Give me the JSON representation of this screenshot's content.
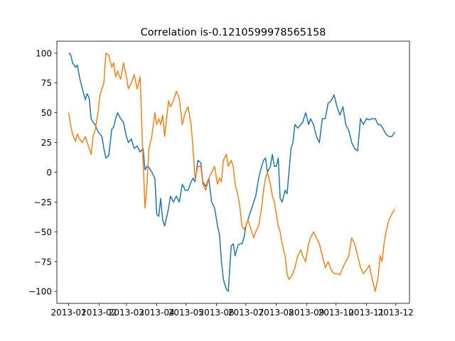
{
  "chart_data": {
    "type": "line",
    "title": "Correlation is-0.1210599978565158",
    "xlabel": "",
    "ylabel": "",
    "xlim": [
      "2012-12-20",
      "2013-12-15"
    ],
    "ylim": [
      -110,
      110
    ],
    "x_ticks": [
      {
        "date": "2013-01-01",
        "label": "2013-01"
      },
      {
        "date": "2013-02-01",
        "label": "2013-02"
      },
      {
        "date": "2013-03-01",
        "label": "2013-03"
      },
      {
        "date": "2013-04-01",
        "label": "2013-04"
      },
      {
        "date": "2013-05-01",
        "label": "2013-05"
      },
      {
        "date": "2013-06-01",
        "label": "2013-06"
      },
      {
        "date": "2013-07-01",
        "label": "2013-07"
      },
      {
        "date": "2013-08-01",
        "label": "2013-08"
      },
      {
        "date": "2013-09-01",
        "label": "2013-09"
      },
      {
        "date": "2013-10-01",
        "label": "2013-10"
      },
      {
        "date": "2013-11-01",
        "label": "2013-11"
      },
      {
        "date": "2013-12-01",
        "label": "2013-12"
      }
    ],
    "y_ticks": [
      {
        "value": 100,
        "label": "100"
      },
      {
        "value": 75,
        "label": "75"
      },
      {
        "value": 50,
        "label": "50"
      },
      {
        "value": 25,
        "label": "25"
      },
      {
        "value": 0,
        "label": "0"
      },
      {
        "value": -25,
        "label": "−25"
      },
      {
        "value": -50,
        "label": "−50"
      },
      {
        "value": -75,
        "label": "−75"
      },
      {
        "value": -100,
        "label": "−100"
      }
    ],
    "grid": false,
    "series": [
      {
        "color": "#1f77b4",
        "x": [
          "2013-01-01",
          "2013-01-03",
          "2013-01-05",
          "2013-01-08",
          "2013-01-10",
          "2013-01-12",
          "2013-01-15",
          "2013-01-18",
          "2013-01-20",
          "2013-01-22",
          "2013-01-24",
          "2013-01-26",
          "2013-01-28",
          "2013-01-31",
          "2013-02-02",
          "2013-02-04",
          "2013-02-06",
          "2013-02-08",
          "2013-02-11",
          "2013-02-14",
          "2013-02-16",
          "2013-02-18",
          "2013-02-20",
          "2013-02-23",
          "2013-02-26",
          "2013-03-01",
          "2013-03-03",
          "2013-03-06",
          "2013-03-09",
          "2013-03-12",
          "2013-03-15",
          "2013-03-18",
          "2013-03-20",
          "2013-03-22",
          "2013-03-24",
          "2013-03-27",
          "2013-03-30",
          "2013-04-01",
          "2013-04-03",
          "2013-04-05",
          "2013-04-07",
          "2013-04-09",
          "2013-04-11",
          "2013-04-13",
          "2013-04-15",
          "2013-04-18",
          "2013-04-21",
          "2013-04-24",
          "2013-04-27",
          "2013-04-30",
          "2013-05-03",
          "2013-05-06",
          "2013-05-08",
          "2013-05-10",
          "2013-05-13",
          "2013-05-16",
          "2013-05-18",
          "2013-05-21",
          "2013-05-24",
          "2013-05-27",
          "2013-05-30",
          "2013-06-02",
          "2013-06-04",
          "2013-06-06",
          "2013-06-08",
          "2013-06-11",
          "2013-06-13",
          "2013-06-16",
          "2013-06-18",
          "2013-06-20",
          "2013-06-23",
          "2013-06-25",
          "2013-06-27",
          "2013-06-29",
          "2013-07-01",
          "2013-07-03",
          "2013-07-05",
          "2013-07-07",
          "2013-07-09",
          "2013-07-11",
          "2013-07-14",
          "2013-07-17",
          "2013-07-19",
          "2013-07-21",
          "2013-07-23",
          "2013-07-26",
          "2013-07-28",
          "2013-07-30",
          "2013-08-01",
          "2013-08-03",
          "2013-08-05",
          "2013-08-07",
          "2013-08-10",
          "2013-08-12",
          "2013-08-14",
          "2013-08-16",
          "2013-08-18",
          "2013-08-20",
          "2013-08-23",
          "2013-08-26",
          "2013-08-28",
          "2013-08-31",
          "2013-09-03",
          "2013-09-05",
          "2013-09-08",
          "2013-09-11",
          "2013-09-14",
          "2013-09-17",
          "2013-09-20",
          "2013-09-23",
          "2013-09-26",
          "2013-09-29",
          "2013-10-02",
          "2013-10-05",
          "2013-10-08",
          "2013-10-11",
          "2013-10-14",
          "2013-10-17",
          "2013-10-20",
          "2013-10-23",
          "2013-10-26",
          "2013-10-29",
          "2013-11-01",
          "2013-11-04",
          "2013-11-07",
          "2013-11-10",
          "2013-11-13",
          "2013-11-15",
          "2013-11-17",
          "2013-11-19",
          "2013-11-21",
          "2013-11-24",
          "2013-11-27",
          "2013-11-30"
        ],
        "y": [
          100,
          99,
          92,
          88,
          90,
          80,
          70,
          61,
          66,
          62,
          45,
          42,
          40,
          34,
          32,
          30,
          20,
          12,
          14,
          36,
          38,
          45,
          50,
          45,
          42,
          30,
          25,
          28,
          20,
          22,
          17,
          20,
          2,
          5,
          4,
          0,
          -5,
          -35,
          -37,
          -22,
          -40,
          -45,
          -38,
          -30,
          -20,
          -25,
          -20,
          -25,
          -10,
          -15,
          -15,
          -8,
          -5,
          -8,
          10,
          8,
          -8,
          -12,
          -5,
          -25,
          -30,
          -45,
          -52,
          -75,
          -90,
          -98,
          -100,
          -62,
          -60,
          -70,
          -61,
          -60,
          -60,
          -55,
          -45,
          -40,
          -35,
          -30,
          -25,
          -20,
          -5,
          5,
          10,
          12,
          0,
          5,
          15,
          5,
          5,
          12,
          -22,
          -25,
          -15,
          -18,
          0,
          20,
          25,
          40,
          37,
          40,
          42,
          50,
          40,
          45,
          40,
          30,
          25,
          45,
          45,
          58,
          60,
          65,
          55,
          48,
          55,
          40,
          35,
          25,
          20,
          18,
          45,
          40,
          45,
          44,
          45,
          45,
          40,
          40,
          38,
          35,
          32,
          30,
          30,
          34
        ],
        "y_note": "ignore"
      },
      {
        "color": "#ff7f0e",
        "x": [
          "2013-01-01",
          "2013-01-03",
          "2013-01-05",
          "2013-01-08",
          "2013-01-10",
          "2013-01-12",
          "2013-01-15",
          "2013-01-18",
          "2013-01-20",
          "2013-01-22",
          "2013-01-24",
          "2013-01-26",
          "2013-01-28",
          "2013-01-31",
          "2013-02-02",
          "2013-02-04",
          "2013-02-06",
          "2013-02-08",
          "2013-02-11",
          "2013-02-14",
          "2013-02-16",
          "2013-02-18",
          "2013-02-20",
          "2013-02-23",
          "2013-02-26",
          "2013-03-01",
          "2013-03-03",
          "2013-03-06",
          "2013-03-09",
          "2013-03-12",
          "2013-03-15",
          "2013-03-18",
          "2013-03-20",
          "2013-03-22",
          "2013-03-24",
          "2013-03-27",
          "2013-03-30",
          "2013-04-01",
          "2013-04-03",
          "2013-04-05",
          "2013-04-07",
          "2013-04-09",
          "2013-04-11",
          "2013-04-13",
          "2013-04-15",
          "2013-04-18",
          "2013-04-21",
          "2013-04-24",
          "2013-04-27",
          "2013-04-30",
          "2013-05-03",
          "2013-05-06",
          "2013-05-08",
          "2013-05-10",
          "2013-05-13",
          "2013-05-16",
          "2013-05-18",
          "2013-05-21",
          "2013-05-24",
          "2013-05-27",
          "2013-05-30",
          "2013-06-02",
          "2013-06-04",
          "2013-06-06",
          "2013-06-08",
          "2013-06-11",
          "2013-06-13",
          "2013-06-16",
          "2013-06-18",
          "2013-06-20",
          "2013-06-23",
          "2013-06-25",
          "2013-06-27",
          "2013-06-29",
          "2013-07-01",
          "2013-07-03",
          "2013-07-05",
          "2013-07-07",
          "2013-07-09",
          "2013-07-11",
          "2013-07-14",
          "2013-07-17",
          "2013-07-19",
          "2013-07-21",
          "2013-07-23",
          "2013-07-26",
          "2013-07-28",
          "2013-07-30",
          "2013-08-01",
          "2013-08-03",
          "2013-08-05",
          "2013-08-07",
          "2013-08-10",
          "2013-08-12",
          "2013-08-14",
          "2013-08-16",
          "2013-08-18",
          "2013-08-20",
          "2013-08-23",
          "2013-08-26",
          "2013-08-28",
          "2013-08-31",
          "2013-09-03",
          "2013-09-05",
          "2013-09-08",
          "2013-09-11",
          "2013-09-14",
          "2013-09-17",
          "2013-09-20",
          "2013-09-23",
          "2013-09-26",
          "2013-09-29",
          "2013-10-02",
          "2013-10-05",
          "2013-10-08",
          "2013-10-11",
          "2013-10-14",
          "2013-10-17",
          "2013-10-20",
          "2013-10-23",
          "2013-10-26",
          "2013-10-29",
          "2013-11-01",
          "2013-11-04",
          "2013-11-07",
          "2013-11-10",
          "2013-11-13",
          "2013-11-15",
          "2013-11-17",
          "2013-11-19",
          "2013-11-21",
          "2013-11-24",
          "2013-11-27",
          "2013-11-30"
        ],
        "y": [
          50,
          40,
          32,
          26,
          32,
          28,
          25,
          30,
          25,
          20,
          15,
          30,
          35,
          50,
          65,
          70,
          75,
          100,
          98,
          88,
          92,
          80,
          85,
          78,
          92,
          80,
          70,
          75,
          82,
          70,
          80,
          10,
          -30,
          -10,
          20,
          30,
          50,
          40,
          45,
          40,
          48,
          30,
          45,
          60,
          55,
          60,
          68,
          62,
          40,
          50,
          55,
          40,
          20,
          -5,
          5,
          5,
          -10,
          -15,
          -5,
          0,
          5,
          -10,
          -5,
          -8,
          10,
          15,
          5,
          10,
          5,
          -10,
          -20,
          -30,
          -45,
          -48,
          -45,
          -40,
          -45,
          -50,
          -55,
          -50,
          -45,
          -30,
          -15,
          -5,
          0,
          -10,
          -20,
          -25,
          -35,
          -45,
          -50,
          -60,
          -70,
          -85,
          -90,
          -88,
          -85,
          -80,
          -70,
          -65,
          -70,
          -75,
          -60,
          -55,
          -50,
          -55,
          -60,
          -70,
          -80,
          -75,
          -82,
          -85,
          -85,
          -86,
          -80,
          -75,
          -70,
          -55,
          -60,
          -70,
          -80,
          -85,
          -82,
          -78,
          -90,
          -100,
          -88,
          -70,
          -75,
          -60,
          -50,
          -40,
          -35,
          -31
        ],
        "y_note": "ignore"
      }
    ]
  }
}
